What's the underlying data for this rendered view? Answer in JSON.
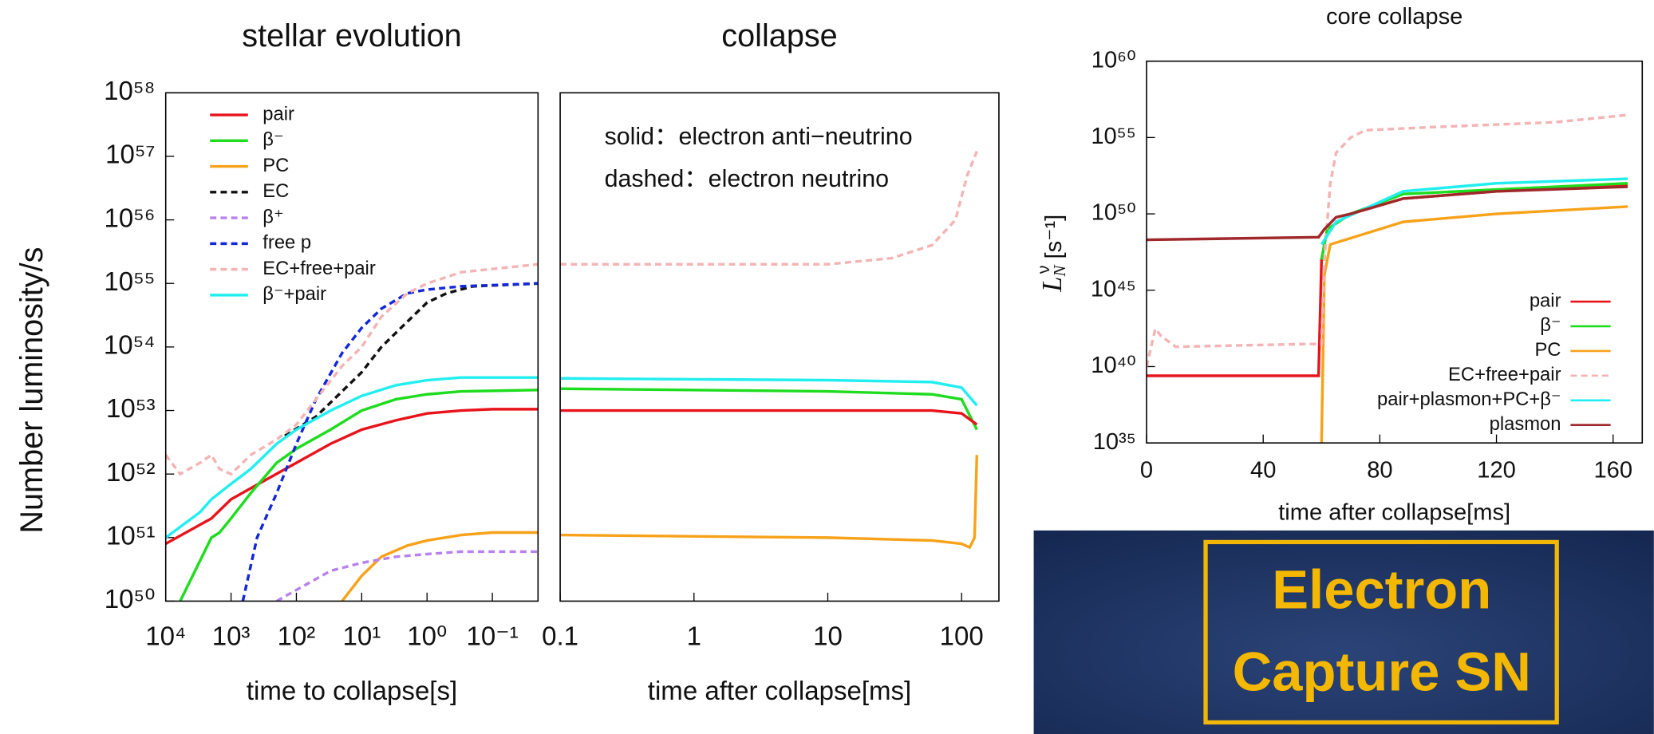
{
  "chart_data": [
    {
      "type": "line",
      "title": "stellar evolution",
      "x_label": "time to collapse[s]",
      "y_label": "Number luminosity/s",
      "x_scale": "log",
      "y_scale": "log",
      "legend": "upper left",
      "xlim": [
        10000,
        0.02
      ],
      "ylim": [
        1e+50,
        1e+58
      ],
      "xticks": [
        {
          "value": 10000,
          "label": "10⁴"
        },
        {
          "value": 1000,
          "label": "10³"
        },
        {
          "value": 100,
          "label": "10²"
        },
        {
          "value": 10,
          "label": "10¹"
        },
        {
          "value": 1,
          "label": "10⁰"
        },
        {
          "value": 0.1,
          "label": "10⁻¹"
        }
      ],
      "yticks": [
        {
          "value": 1e+50,
          "label": "10⁵⁰"
        },
        {
          "value": 1e+51,
          "label": "10⁵¹"
        },
        {
          "value": 1e+52,
          "label": "10⁵²"
        },
        {
          "value": 1e+53,
          "label": "10⁵³"
        },
        {
          "value": 1e+54,
          "label": "10⁵⁴"
        },
        {
          "value": 1e+55,
          "label": "10⁵⁵"
        },
        {
          "value": 1e+56,
          "label": "10⁵⁶"
        },
        {
          "value": 1e+57,
          "label": "10⁵⁷"
        },
        {
          "value": 1e+58,
          "label": "10⁵⁸"
        }
      ],
      "series": [
        {
          "name": "pair",
          "color": "#e8141c",
          "linestyle": "solid",
          "x": [
            10000,
            2000,
            1000,
            300,
            100,
            30,
            10,
            3,
            1,
            0.3,
            0.1,
            0.02
          ],
          "values": [
            8e+50,
            2e+51,
            4e+51,
            8e+51,
            1.5e+52,
            3e+52,
            5e+52,
            7e+52,
            9e+52,
            1e+53,
            1.05e+53,
            1.05e+53
          ]
        },
        {
          "name": "β⁻",
          "color": "#1edc1e",
          "linestyle": "solid",
          "x": [
            6000,
            2000,
            1500,
            1000,
            500,
            200,
            100,
            30,
            10,
            3,
            1,
            0.3,
            0.02
          ],
          "values": [
            1e+50,
            1e+51,
            1.2e+51,
            2e+51,
            5e+51,
            1.5e+52,
            2.5e+52,
            5e+52,
            1e+53,
            1.5e+53,
            1.8e+53,
            2e+53,
            2.1e+53
          ]
        },
        {
          "name": "PC",
          "color": "#f8a21a",
          "linestyle": "solid",
          "x": [
            20,
            10,
            5,
            2,
            1,
            0.3,
            0.1,
            0.02
          ],
          "values": [
            1e+50,
            2.5e+50,
            5e+50,
            7.5e+50,
            9e+50,
            1.1e+51,
            1.2e+51,
            1.2e+51
          ]
        },
        {
          "name": "EC",
          "color": "#111111",
          "linestyle": "dashed",
          "x": [
            150,
            50,
            20,
            10,
            5,
            2,
            1,
            0.5,
            0.2,
            0.02
          ],
          "values": [
            4e+52,
            8e+52,
            2e+53,
            4e+53,
            1e+54,
            2.5e+54,
            5e+54,
            7e+54,
            9e+54,
            1e+55
          ]
        },
        {
          "name": "β⁺",
          "color": "#b882ee",
          "linestyle": "dashed",
          "x": [
            200,
            100,
            30,
            10,
            3,
            1,
            0.3,
            0.02
          ],
          "values": [
            1e+50,
            1.5e+50,
            3e+50,
            4e+50,
            5e+50,
            5.5e+50,
            6e+50,
            6e+50
          ]
        },
        {
          "name": "free p",
          "color": "#1428d8",
          "linestyle": "dashed",
          "x": [
            660,
            400,
            200,
            100,
            50,
            20,
            10,
            5,
            2,
            1,
            0.3,
            0.02
          ],
          "values": [
            1e+50,
            1e+51,
            5e+51,
            3e+52,
            1.5e+53,
            8e+53,
            2e+54,
            4e+54,
            7e+54,
            8e+54,
            9e+54,
            1e+55
          ]
        },
        {
          "name": "EC+free+pair",
          "color": "#f4b4b4",
          "linestyle": "dashed",
          "x": [
            10000,
            6000,
            3000,
            2000,
            1500,
            1000,
            500,
            200,
            100,
            50,
            20,
            10,
            5,
            2,
            1,
            0.3,
            0.02
          ],
          "values": [
            2e+52,
            1e+52,
            1.5e+52,
            2e+52,
            1.2e+52,
            1e+52,
            2e+52,
            3.5e+52,
            6e+52,
            1.5e+53,
            5e+53,
            1e+54,
            3e+54,
            7e+54,
            1e+55,
            1.5e+55,
            2e+55
          ]
        },
        {
          "name": "β⁻+pair",
          "color": "#22eef0",
          "linestyle": "solid",
          "x": [
            10000,
            3000,
            2000,
            1000,
            500,
            200,
            100,
            30,
            10,
            3,
            1,
            0.3,
            0.02
          ],
          "values": [
            1e+51,
            2.5e+51,
            4e+51,
            7e+51,
            1.2e+52,
            3e+52,
            5e+52,
            1e+53,
            1.7e+53,
            2.5e+53,
            3e+53,
            3.3e+53,
            3.3e+53
          ]
        }
      ]
    },
    {
      "type": "line",
      "title": "collapse",
      "x_label": "time after collapse[ms]",
      "x_scale": "log",
      "y_scale": "log",
      "annotations": [
        "solid：electron anti−neutrino",
        "dashed：electron neutrino"
      ],
      "xlim": [
        0.1,
        190
      ],
      "ylim": [
        1e+50,
        1e+58
      ],
      "xticks": [
        0.1,
        1,
        10,
        100
      ],
      "series": [
        {
          "color": "#22eef0",
          "linestyle": "solid",
          "x": [
            0.1,
            10,
            60,
            100,
            130
          ],
          "values": [
            3.2e+53,
            3e+53,
            2.8e+53,
            2.3e+53,
            1.2e+53
          ]
        },
        {
          "color": "#1edc1e",
          "linestyle": "solid",
          "x": [
            0.1,
            10,
            60,
            100,
            130
          ],
          "values": [
            2.2e+53,
            2e+53,
            1.8e+53,
            1.5e+53,
            5e+52
          ]
        },
        {
          "color": "#e8141c",
          "linestyle": "solid",
          "x": [
            0.1,
            60,
            100,
            130
          ],
          "values": [
            1e+53,
            1e+53,
            9e+52,
            6e+52
          ]
        },
        {
          "color": "#f8a21a",
          "linestyle": "solid",
          "x": [
            0.1,
            10,
            60,
            100,
            115,
            125,
            130
          ],
          "values": [
            1.1e+51,
            1e+51,
            9e+50,
            8e+50,
            7e+50,
            1e+51,
            2e+52
          ]
        },
        {
          "color": "#f4b4b4",
          "linestyle": "dashed",
          "x": [
            0.1,
            10,
            30,
            60,
            90,
            110,
            130
          ],
          "values": [
            2e+55,
            2e+55,
            2.5e+55,
            4e+55,
            1e+56,
            5e+56,
            1.2e+57
          ]
        }
      ]
    },
    {
      "type": "line",
      "title": "core collapse",
      "x_label": "time after collapse[ms]",
      "y_label": {
        "main": "L",
        "sub": "N",
        "sup": "ν",
        "unit": " [s⁻¹]"
      },
      "x_scale": "linear",
      "y_scale": "log",
      "legend": "lower right",
      "xlim": [
        0,
        170
      ],
      "ylim": [
        1e+35,
        1e+60
      ],
      "xticks": [
        0,
        40,
        80,
        120,
        160
      ],
      "yticks": [
        {
          "value": 1e+35,
          "label": "10³⁵"
        },
        {
          "value": 1e+40,
          "label": "10⁴⁰"
        },
        {
          "value": 1e+45,
          "label": "10⁴⁵"
        },
        {
          "value": 1e+50,
          "label": "10⁵⁰"
        },
        {
          "value": 1e+55,
          "label": "10⁵⁵"
        },
        {
          "value": 1e+60,
          "label": "10⁶⁰"
        }
      ],
      "series": [
        {
          "name": "pair",
          "color": "#e8141c",
          "linestyle": "solid",
          "x": [
            0,
            59,
            60,
            62,
            70,
            88,
            120,
            165
          ],
          "values": [
            2.5e+39,
            2.5e+39,
            1e+47,
            1e+49,
            1e+50,
            1e+51,
            3e+51,
            8e+51
          ]
        },
        {
          "name": "β⁻",
          "color": "#1edc1e",
          "linestyle": "solid",
          "x": [
            60,
            62,
            70,
            88,
            165
          ],
          "values": [
            1e+47,
            1e+49,
            1e+50,
            2e+51,
            1e+52
          ]
        },
        {
          "name": "PC",
          "color": "#f8a21a",
          "linestyle": "solid",
          "x": [
            60,
            61,
            63,
            88,
            120,
            165
          ],
          "values": [
            1e+35,
            1e+46,
            1e+48,
            3e+49,
            1e+50,
            3e+50
          ]
        },
        {
          "name": "EC+free+pair",
          "color": "#f4b4b4",
          "linestyle": "dashed",
          "x": [
            0,
            3,
            5,
            10,
            55,
            60,
            61,
            63,
            65,
            70,
            75,
            100,
            140,
            165
          ],
          "values": [
            1e+40,
            3e+42,
            1e+42,
            2e+41,
            3e+41,
            3e+41,
            1e+47,
            1e+52,
            1e+54,
            1e+55,
            3e+55,
            5e+55,
            1e+56,
            3e+56
          ]
        },
        {
          "name": "pair+plasmon+PC+β⁻",
          "color": "#22eef0",
          "linestyle": "solid",
          "x": [
            60,
            65,
            88,
            120,
            165
          ],
          "values": [
            1e+48,
            3e+49,
            3e+51,
            1e+52,
            2e+52
          ]
        },
        {
          "name": "plasmon",
          "color": "#a0282a",
          "linestyle": "solid",
          "x": [
            0,
            59,
            61,
            65,
            70,
            88,
            120,
            165
          ],
          "values": [
            2e+48,
            3e+48,
            1e+49,
            6e+49,
            1e+50,
            1e+51,
            3e+51,
            6e+51
          ]
        }
      ]
    }
  ],
  "banner": {
    "lines": [
      "Electron",
      "Capture SN"
    ]
  }
}
